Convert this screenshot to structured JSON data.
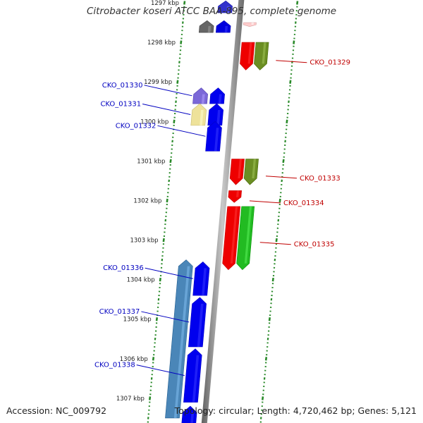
{
  "title": "Citrobacter koseri ATCC BAA-895, complete genome",
  "accession_text": "Accession: NC_009792",
  "summary_text": "Topology: circular; Length: 4,720,462 bp; Genes: 5,121",
  "colors": {
    "backbone": "#8a8a8a",
    "tick": "#2a8a2a",
    "forward_label": "#c00000",
    "reverse_label": "#0000c0"
  },
  "scale": {
    "unit": "kbp",
    "ticks": [
      {
        "kbp": 1297,
        "label": "1297 kbp"
      },
      {
        "kbp": 1298,
        "label": "1298 kbp"
      },
      {
        "kbp": 1299,
        "label": "1299 kbp"
      },
      {
        "kbp": 1300,
        "label": "1300 kbp"
      },
      {
        "kbp": 1301,
        "label": "1301 kbp"
      },
      {
        "kbp": 1302,
        "label": "1302 kbp"
      },
      {
        "kbp": 1303,
        "label": "1303 kbp"
      },
      {
        "kbp": 1304,
        "label": "1304 kbp"
      },
      {
        "kbp": 1305,
        "label": "1305 kbp"
      },
      {
        "kbp": 1306,
        "label": "1306 kbp"
      },
      {
        "kbp": 1307,
        "label": "1307 kbp"
      }
    ]
  },
  "features": {
    "reverse": [
      {
        "start": 1296.95,
        "end": 1297.25,
        "color": "#3333cc",
        "track": "inner"
      },
      {
        "start": 1297.45,
        "end": 1297.75,
        "color": "#666666",
        "track": "outer"
      },
      {
        "start": 1297.45,
        "end": 1297.75,
        "color": "#0000dd",
        "track": "inner"
      },
      {
        "start": 1299.15,
        "end": 1299.55,
        "color": "#7b68d8",
        "track": "outer",
        "label": "CKO_01330"
      },
      {
        "start": 1299.15,
        "end": 1299.55,
        "color": "#0000ee",
        "track": "inner"
      },
      {
        "start": 1299.55,
        "end": 1300.1,
        "color": "#eee29a",
        "track": "outer",
        "label": "CKO_01331"
      },
      {
        "start": 1299.55,
        "end": 1300.1,
        "color": "#0000ee",
        "track": "inner"
      },
      {
        "start": 1300.0,
        "end": 1300.75,
        "color": "#0000ee",
        "track": "inner",
        "label": "CKO_01332"
      },
      {
        "start": 1303.5,
        "end": 1307.5,
        "color": "#4a86b8",
        "track": "outer"
      },
      {
        "start": 1303.55,
        "end": 1304.4,
        "color": "#0000ee",
        "track": "inner",
        "label": "CKO_01336"
      },
      {
        "start": 1304.45,
        "end": 1305.7,
        "color": "#0000ee",
        "track": "inner",
        "label": "CKO_01337"
      },
      {
        "start": 1305.75,
        "end": 1307.1,
        "color": "#0000ee",
        "track": "inner",
        "label": "CKO_01338"
      },
      {
        "start": 1307.2,
        "end": 1307.7,
        "color": "#0000ee",
        "track": "inner"
      }
    ],
    "forward": [
      {
        "start": 1297.5,
        "end": 1297.6,
        "color": "#ffcccc",
        "track": "inner"
      },
      {
        "start": 1298.0,
        "end": 1298.7,
        "color": "#ee0000",
        "track": "inner"
      },
      {
        "start": 1298.0,
        "end": 1298.7,
        "color": "#6b8e23",
        "track": "outer",
        "label": "CKO_01329"
      },
      {
        "start": 1300.95,
        "end": 1301.6,
        "color": "#ee0000",
        "track": "inner"
      },
      {
        "start": 1300.95,
        "end": 1301.6,
        "color": "#6b8e23",
        "track": "outer",
        "label": "CKO_01333"
      },
      {
        "start": 1301.75,
        "end": 1302.05,
        "color": "#ee0000",
        "track": "inner",
        "label": "CKO_01334"
      },
      {
        "start": 1302.15,
        "end": 1303.75,
        "color": "#ee0000",
        "track": "inner"
      },
      {
        "start": 1302.15,
        "end": 1303.75,
        "color": "#22bb22",
        "track": "outer",
        "label": "CKO_01335"
      }
    ]
  },
  "legend_labels": {
    "reverse": [
      "CKO_01330",
      "CKO_01331",
      "CKO_01332",
      "CKO_01336",
      "CKO_01337",
      "CKO_01338"
    ],
    "forward": [
      "CKO_01329",
      "CKO_01333",
      "CKO_01334",
      "CKO_01335"
    ]
  }
}
